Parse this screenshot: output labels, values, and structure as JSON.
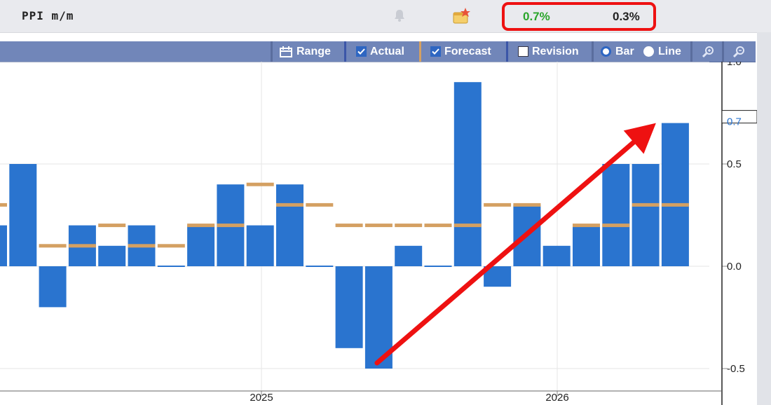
{
  "header": {
    "indicator_name": "PPI m/m",
    "actual_value": "0.7%",
    "forecast_value": "0.3%",
    "icons": [
      "bell-icon",
      "event-star-icon"
    ],
    "actual_color": "#2aa52a",
    "highlight_color": "#ee1111"
  },
  "toolbar": {
    "range_label": "Range",
    "actual_label": "Actual",
    "actual_checked": true,
    "forecast_label": "Forecast",
    "forecast_checked": true,
    "revision_label": "Revision",
    "revision_checked": false,
    "bar_label": "Bar",
    "line_label": "Line",
    "selected_mode": "Bar",
    "icons": [
      "calendar-icon",
      "zoom-in-icon",
      "zoom-out-icon"
    ]
  },
  "chart_data": {
    "type": "bar",
    "actual_color": "#2a74cf",
    "forecast_color": "#d4a062",
    "arrow_color": "#ee1111",
    "y_ticks": [
      "1.0",
      "0.5",
      "0.0",
      "-0.5"
    ],
    "y_highlight_label": "0.7",
    "x_tick_labels": [
      "2025",
      "2026"
    ],
    "grid": true,
    "series": [
      {
        "name": "Actual",
        "values": [
          0.2,
          0.5,
          -0.2,
          0.2,
          0.1,
          0.2,
          0.0,
          0.2,
          0.4,
          0.2,
          0.4,
          0.0,
          -0.4,
          -0.5,
          0.1,
          0.0,
          0.9,
          -0.1,
          0.3,
          0.1,
          0.2,
          0.5,
          0.5,
          0.7
        ]
      },
      {
        "name": "Forecast",
        "values": [
          0.3,
          null,
          0.1,
          0.1,
          0.2,
          0.1,
          0.1,
          0.2,
          0.2,
          0.4,
          0.3,
          0.3,
          0.2,
          0.2,
          0.2,
          0.2,
          0.2,
          0.3,
          0.3,
          null,
          0.2,
          0.2,
          0.3,
          0.3
        ]
      }
    ]
  }
}
